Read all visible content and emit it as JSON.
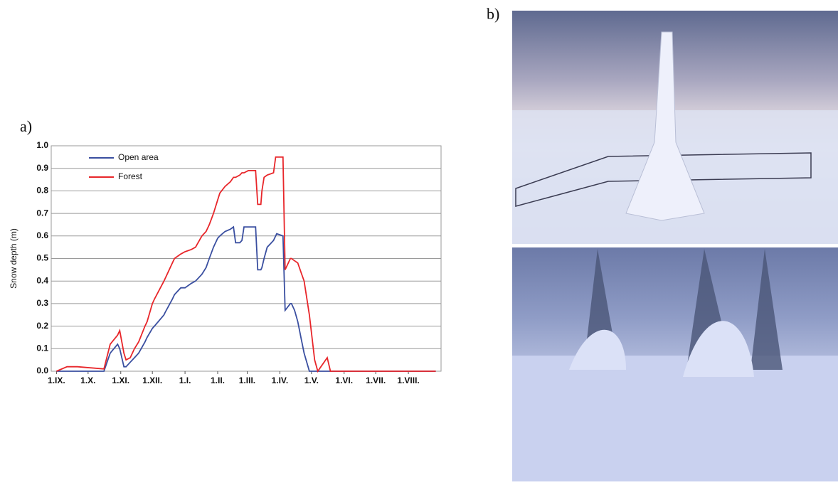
{
  "chart_data": {
    "type": "line",
    "panel_a_label": "a)",
    "panel_b_label": "b)",
    "ylabel": "Snow depth (m)",
    "x": [
      0,
      10,
      20,
      45,
      51,
      58,
      60,
      64,
      66,
      70,
      74,
      78,
      84,
      86,
      91,
      93,
      102,
      103,
      110,
      112,
      118,
      122,
      128,
      132,
      138,
      142,
      145,
      149,
      153,
      155,
      160,
      165,
      168,
      170,
      174,
      176,
      178,
      182,
      189,
      191,
      194,
      195,
      197,
      200,
      206,
      208,
      209,
      215,
      217,
      222,
      223,
      226,
      229,
      232,
      235,
      240,
      245,
      248,
      257,
      260,
      360
    ],
    "series": [
      {
        "name": "Open area",
        "color": "#3a4fa0",
        "values": [
          0,
          0,
          0,
          0,
          0.08,
          0.12,
          0.1,
          0.02,
          0.02,
          0.04,
          0.06,
          0.08,
          0.13,
          0.15,
          0.19,
          0.2,
          0.25,
          0.26,
          0.32,
          0.34,
          0.37,
          0.37,
          0.39,
          0.4,
          0.43,
          0.46,
          0.5,
          0.55,
          0.59,
          0.6,
          0.62,
          0.63,
          0.64,
          0.57,
          0.57,
          0.58,
          0.64,
          0.64,
          0.64,
          0.45,
          0.45,
          0.46,
          0.5,
          0.55,
          0.58,
          0.6,
          0.61,
          0.6,
          0.27,
          0.3,
          0.3,
          0.27,
          0.22,
          0.15,
          0.08,
          0,
          0,
          0,
          0,
          0,
          0
        ]
      },
      {
        "name": "Forest",
        "color": "#e8262a",
        "values": [
          0,
          0.02,
          0.02,
          0.01,
          0.12,
          0.16,
          0.18,
          0.08,
          0.05,
          0.06,
          0.1,
          0.13,
          0.2,
          0.22,
          0.3,
          0.32,
          0.4,
          0.41,
          0.48,
          0.5,
          0.52,
          0.53,
          0.54,
          0.55,
          0.6,
          0.62,
          0.65,
          0.7,
          0.76,
          0.79,
          0.82,
          0.84,
          0.86,
          0.86,
          0.87,
          0.88,
          0.88,
          0.89,
          0.89,
          0.74,
          0.74,
          0.8,
          0.86,
          0.87,
          0.88,
          0.95,
          0.95,
          0.95,
          0.45,
          0.5,
          0.5,
          0.49,
          0.48,
          0.44,
          0.4,
          0.25,
          0.05,
          0,
          0.06,
          0,
          0
        ]
      }
    ],
    "xlim": [
      -5,
      365
    ],
    "xticks": [
      {
        "value": 0,
        "label": "1.IX."
      },
      {
        "value": 30,
        "label": "1.X."
      },
      {
        "value": 61,
        "label": "1.XI."
      },
      {
        "value": 91,
        "label": "1.XII."
      },
      {
        "value": 122,
        "label": "1.I."
      },
      {
        "value": 153,
        "label": "1.II."
      },
      {
        "value": 181,
        "label": "1.III."
      },
      {
        "value": 212,
        "label": "1.IV."
      },
      {
        "value": 242,
        "label": "1.V."
      },
      {
        "value": 273,
        "label": "1.VI."
      },
      {
        "value": 303,
        "label": "1.VII."
      },
      {
        "value": 334,
        "label": "1.VIII."
      }
    ],
    "ylim": [
      0,
      1
    ],
    "yticks": [
      {
        "value": 0,
        "label": "0.0"
      },
      0.1,
      0.2,
      0.3,
      0.4,
      0.5,
      0.6,
      0.7,
      0.8,
      0.9,
      {
        "value": 1,
        "label": "1.0"
      }
    ],
    "grid": true
  }
}
